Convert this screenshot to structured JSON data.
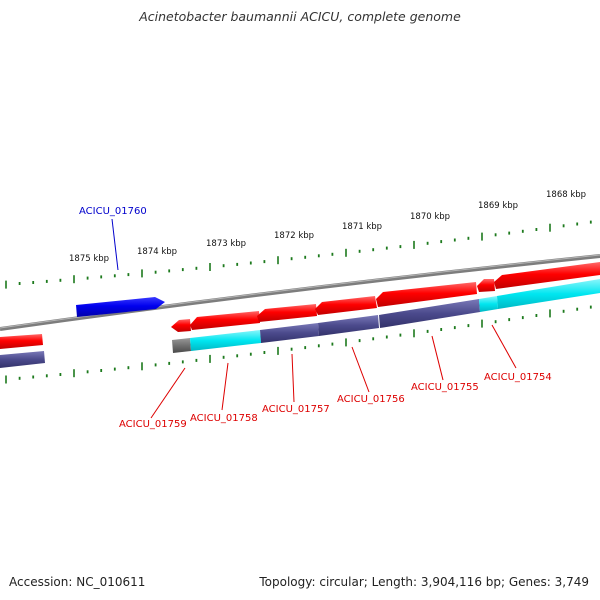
{
  "title": "Acinetobacter baumannii ACICU, complete genome",
  "footer": {
    "accession": "Accession: NC_010611",
    "topology": "Topology: circular; Length: 3,904,116 bp; Genes: 3,749"
  },
  "colors": {
    "backbone": "#7d7d7d",
    "tick": "#1d7a1d",
    "gene_red": "#ff0000",
    "gene_blue": "#0000ee",
    "cds_cyan": "#00e6f0",
    "cds_slate": "#4b4a8c",
    "cds_gray": "#707070",
    "label_red": "#dd0000",
    "label_blue": "#0000cc"
  },
  "scale_labels": [
    "1875 kbp",
    "1874 kbp",
    "1873 kbp",
    "1872 kbp",
    "1871 kbp",
    "1870 kbp",
    "1869 kbp",
    "1868 kbp"
  ],
  "gene_labels": [
    {
      "name": "ACICU_01760",
      "color": "blue"
    },
    {
      "name": "ACICU_01759",
      "color": "red"
    },
    {
      "name": "ACICU_01758",
      "color": "red"
    },
    {
      "name": "ACICU_01757",
      "color": "red"
    },
    {
      "name": "ACICU_01756",
      "color": "red"
    },
    {
      "name": "ACICU_01755",
      "color": "red"
    },
    {
      "name": "ACICU_01754",
      "color": "red"
    }
  ]
}
